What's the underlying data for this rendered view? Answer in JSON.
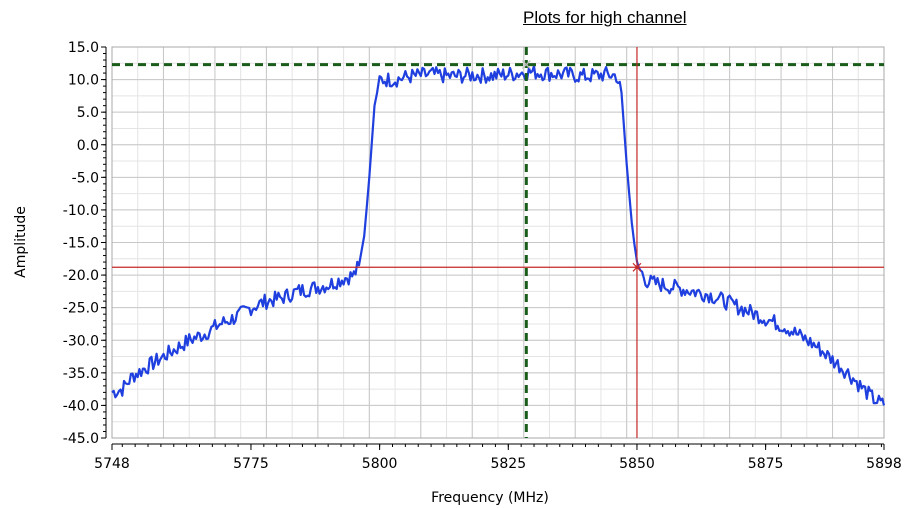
{
  "header": {
    "title": "Plots for high channel"
  },
  "chart_data": {
    "type": "line",
    "title": "",
    "xlabel": "Frequency (MHz)",
    "ylabel": "Amplitude",
    "xlim": [
      5748,
      5898
    ],
    "ylim": [
      -45,
      15
    ],
    "x_ticks": [
      "5748",
      "5775",
      "5800",
      "5825",
      "5850",
      "5875",
      "5898"
    ],
    "x_tick_values": [
      5748,
      5775,
      5800,
      5825,
      5850,
      5875,
      5898
    ],
    "y_ticks": [
      "15.0",
      "10.0",
      "5.0",
      "0.0",
      "-5.0",
      "-10.0",
      "-15.0",
      "-20.0",
      "-25.0",
      "-30.0",
      "-35.0",
      "-40.0",
      "-45.0"
    ],
    "y_tick_values": [
      15,
      10,
      5,
      0,
      -5,
      -10,
      -15,
      -20,
      -25,
      -30,
      -35,
      -40,
      -45
    ],
    "grid": true,
    "series": [
      {
        "color": "#1f3fdf",
        "x": [
          5748,
          5750,
          5752,
          5755,
          5758,
          5760,
          5763,
          5766,
          5769,
          5772,
          5775,
          5778,
          5781,
          5784,
          5787,
          5790,
          5793,
          5795,
          5796,
          5797,
          5798,
          5799,
          5800,
          5803,
          5806,
          5810,
          5814,
          5818,
          5822,
          5826,
          5829,
          5832,
          5836,
          5840,
          5844,
          5846,
          5847,
          5848,
          5849,
          5850,
          5852,
          5855,
          5858,
          5861,
          5864,
          5867,
          5870,
          5873,
          5876,
          5879,
          5882,
          5885,
          5888,
          5891,
          5894,
          5896,
          5898
        ],
        "y": [
          -38.0,
          -37.5,
          -35.5,
          -34.0,
          -32.5,
          -31.5,
          -30.0,
          -29.0,
          -27.5,
          -26.5,
          -25.0,
          -24.0,
          -23.5,
          -22.5,
          -22.0,
          -21.5,
          -20.5,
          -20.0,
          -18.5,
          -14.0,
          -5.0,
          6.0,
          10.0,
          10.0,
          10.5,
          10.8,
          10.5,
          10.7,
          10.6,
          10.9,
          11.2,
          11.0,
          10.8,
          10.5,
          10.8,
          10.6,
          8.0,
          -3.0,
          -12.0,
          -18.5,
          -21.0,
          -21.5,
          -22.0,
          -22.5,
          -23.0,
          -24.0,
          -25.0,
          -26.0,
          -27.0,
          -28.0,
          -29.5,
          -31.0,
          -33.0,
          -35.0,
          -37.5,
          -39.0,
          -40.0
        ]
      }
    ],
    "markers": [
      {
        "x": 5828.5,
        "y": 12.3,
        "color": "#1a5c1a",
        "style": "dashed"
      },
      {
        "x": 5850.0,
        "y": -18.8,
        "color": "#c62828",
        "style": "solid"
      }
    ]
  }
}
